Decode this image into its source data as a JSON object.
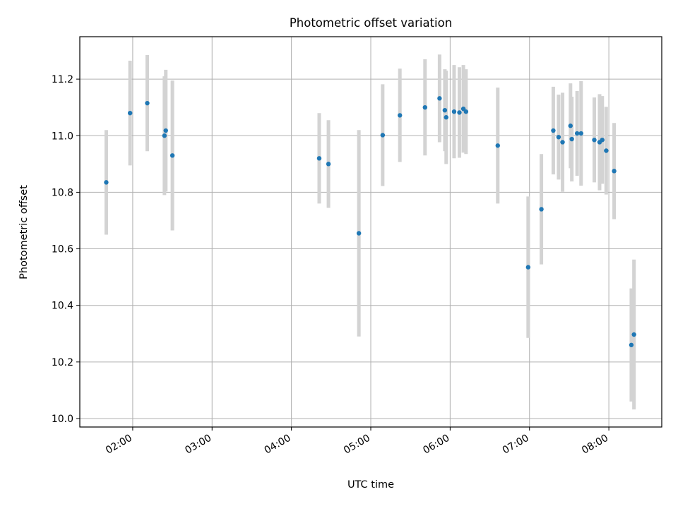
{
  "chart_data": {
    "type": "scatter",
    "title": "Photometric offset variation",
    "xlabel": "UTC time",
    "ylabel": "Photometric offset",
    "xlim": [
      "01:20",
      "08:40"
    ],
    "ylim": [
      9.97,
      11.35
    ],
    "x_ticks": [
      "02:00",
      "03:00",
      "04:00",
      "05:00",
      "06:00",
      "07:00",
      "08:00"
    ],
    "y_ticks": [
      10.0,
      10.2,
      10.4,
      10.6,
      10.8,
      11.0,
      11.2
    ],
    "y_tick_labels": [
      "10.0",
      "10.2",
      "10.4",
      "10.6",
      "10.8",
      "11.0",
      "11.2"
    ],
    "grid": true,
    "colors": {
      "marker": "#1f77b4",
      "errorbar": "#d3d3d3",
      "grid": "#b0b0b0"
    },
    "series": [
      {
        "points": [
          {
            "x": "01:40",
            "y": 10.835,
            "err": 0.185
          },
          {
            "x": "01:58",
            "y": 11.08,
            "err": 0.185
          },
          {
            "x": "02:11",
            "y": 11.115,
            "err": 0.17
          },
          {
            "x": "02:24",
            "y": 11.0,
            "err": 0.21
          },
          {
            "x": "02:25",
            "y": 11.018,
            "err": 0.215
          },
          {
            "x": "02:30",
            "y": 10.93,
            "err": 0.265
          },
          {
            "x": "04:21",
            "y": 10.92,
            "err": 0.16
          },
          {
            "x": "04:28",
            "y": 10.9,
            "err": 0.155
          },
          {
            "x": "04:51",
            "y": 10.655,
            "err": 0.365
          },
          {
            "x": "05:09",
            "y": 11.002,
            "err": 0.18
          },
          {
            "x": "05:22",
            "y": 11.072,
            "err": 0.165
          },
          {
            "x": "05:41",
            "y": 11.1,
            "err": 0.17
          },
          {
            "x": "05:52",
            "y": 11.132,
            "err": 0.155
          },
          {
            "x": "05:56",
            "y": 11.09,
            "err": 0.145
          },
          {
            "x": "05:57",
            "y": 11.065,
            "err": 0.165
          },
          {
            "x": "06:03",
            "y": 11.085,
            "err": 0.165
          },
          {
            "x": "06:07",
            "y": 11.082,
            "err": 0.16
          },
          {
            "x": "06:10",
            "y": 11.095,
            "err": 0.155
          },
          {
            "x": "06:12",
            "y": 11.085,
            "err": 0.15
          },
          {
            "x": "06:36",
            "y": 10.965,
            "err": 0.205
          },
          {
            "x": "06:59",
            "y": 10.535,
            "err": 0.25
          },
          {
            "x": "07:09",
            "y": 10.74,
            "err": 0.195
          },
          {
            "x": "07:18",
            "y": 11.018,
            "err": 0.155
          },
          {
            "x": "07:22",
            "y": 10.995,
            "err": 0.15
          },
          {
            "x": "07:25",
            "y": 10.977,
            "err": 0.175
          },
          {
            "x": "07:31",
            "y": 11.035,
            "err": 0.15
          },
          {
            "x": "07:32",
            "y": 10.988,
            "err": 0.15
          },
          {
            "x": "07:36",
            "y": 11.008,
            "err": 0.15
          },
          {
            "x": "07:39",
            "y": 11.008,
            "err": 0.185
          },
          {
            "x": "07:49",
            "y": 10.985,
            "err": 0.15
          },
          {
            "x": "07:53",
            "y": 10.977,
            "err": 0.17
          },
          {
            "x": "07:55",
            "y": 10.985,
            "err": 0.155
          },
          {
            "x": "07:58",
            "y": 10.947,
            "err": 0.155
          },
          {
            "x": "08:04",
            "y": 10.875,
            "err": 0.17
          },
          {
            "x": "08:17",
            "y": 10.26,
            "err": 0.2
          },
          {
            "x": "08:19",
            "y": 10.297,
            "err": 0.265
          }
        ]
      }
    ]
  }
}
